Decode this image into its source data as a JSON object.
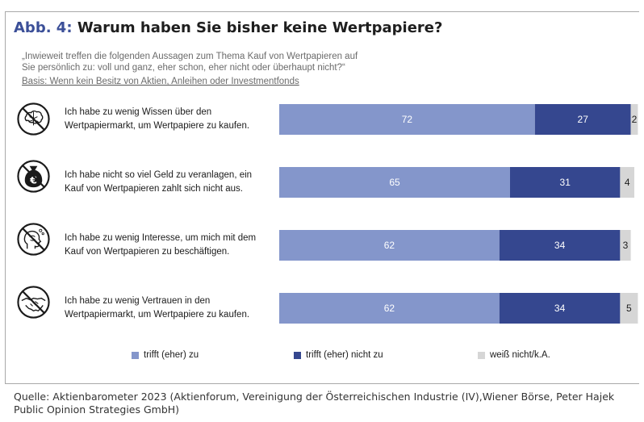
{
  "header": {
    "figure_label": "Abb. 4:",
    "title": "Warum haben Sie bisher keine Wertpapiere?"
  },
  "question": "„Inwieweit treffen die folgenden Aussagen zum Thema Kauf von Wertpapieren auf Sie persönlich zu: voll und ganz, eher schon, eher nicht oder überhaupt nicht?“",
  "basis": "Basis: Wenn kein Besitz von Aktien, Anleihen oder Investmentfonds",
  "rows": [
    {
      "icon": "brain-crossed-icon",
      "label": "Ich habe zu wenig Wissen über den Wertpapiermarkt, um Wertpapiere zu kaufen."
    },
    {
      "icon": "euro-money-bag-crossed-icon",
      "label": "Ich habe nicht so viel Geld zu veranlagen, ein Kauf von Wertpapieren zahlt sich nicht aus."
    },
    {
      "icon": "head-thought-crossed-icon",
      "label": "Ich habe zu wenig Interesse, um mich mit dem Kauf von Wertpapieren zu beschäftigen."
    },
    {
      "icon": "handshake-crossed-icon",
      "label": "Ich habe zu wenig Vertrauen in den Wertpapiermarkt, um Wertpapiere zu kaufen."
    }
  ],
  "chart_data": {
    "type": "bar",
    "orientation": "horizontal",
    "stacked": true,
    "categories": [
      "Ich habe zu wenig Wissen über den Wertpapiermarkt, um Wertpapiere zu kaufen.",
      "Ich habe nicht so viel Geld zu veranlagen, ein Kauf von Wertpapieren zahlt sich nicht aus.",
      "Ich habe zu wenig Interesse, um mich mit dem Kauf von Wertpapieren zu beschäftigen.",
      "Ich habe zu wenig Vertrauen in den Wertpapiermarkt, um Wertpapiere zu kaufen."
    ],
    "series": [
      {
        "name": "trifft (eher) zu",
        "color": "#8496cb",
        "values": [
          72,
          65,
          62,
          62
        ]
      },
      {
        "name": "trifft (eher) nicht zu",
        "color": "#35478f",
        "values": [
          27,
          31,
          34,
          34
        ]
      },
      {
        "name": "weiß nicht/k.A.",
        "color": "#d6d6d6",
        "values": [
          2,
          4,
          3,
          5
        ]
      }
    ],
    "xlim": [
      0,
      100
    ],
    "legend_position": "bottom",
    "grid": false
  },
  "legend": [
    {
      "label": "trifft (eher) zu",
      "color": "#8496cb"
    },
    {
      "label": "trifft (eher) nicht zu",
      "color": "#35478f"
    },
    {
      "label": "weiß nicht/k.A.",
      "color": "#d6d6d6"
    }
  ],
  "source": "Quelle: Aktienbarometer 2023 (Aktienforum, Vereinigung der Österreichischen Industrie (IV),Wiener Börse, Peter Hajek Public Opinion Strategies GmbH)"
}
